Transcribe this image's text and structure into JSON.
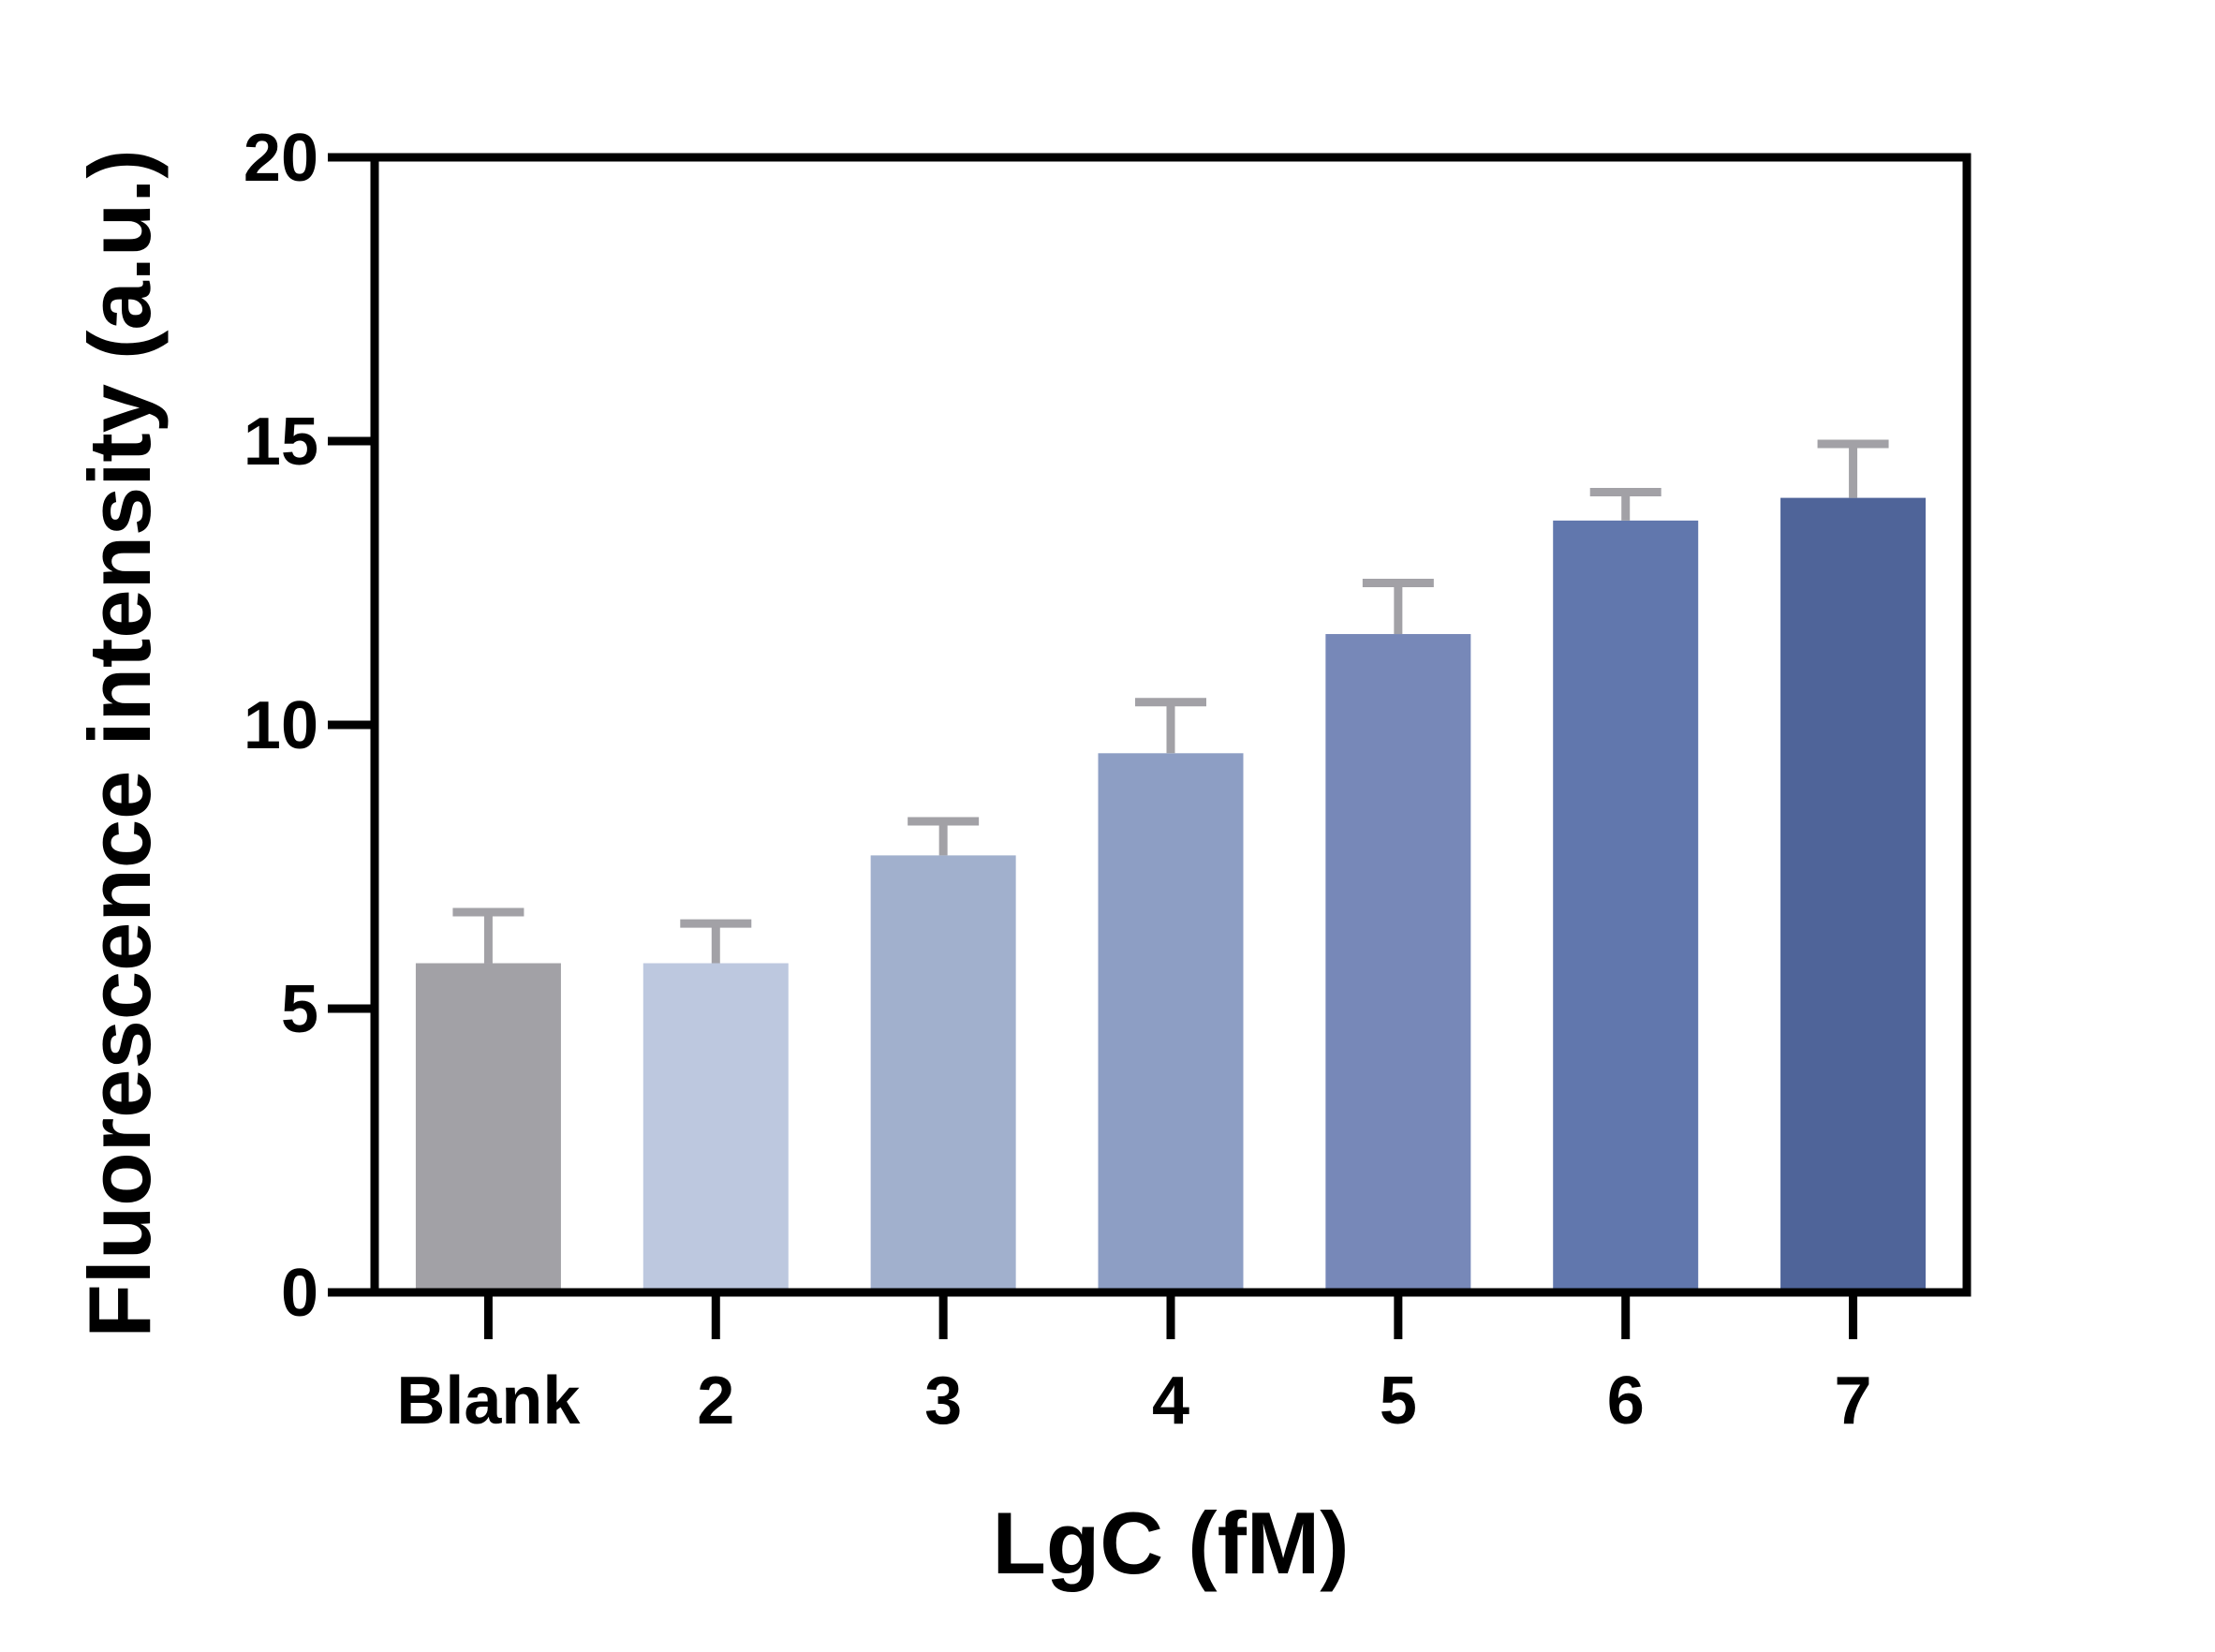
{
  "chart_data": {
    "type": "bar",
    "title": "",
    "xlabel": "LgC (fM)",
    "ylabel": "Fluorescence intensity (a.u.)",
    "categories": [
      "Blank",
      "2",
      "3",
      "4",
      "5",
      "6",
      "7"
    ],
    "values": [
      5.8,
      5.8,
      7.7,
      9.5,
      11.6,
      13.6,
      14.0
    ],
    "error_upper": [
      0.9,
      0.7,
      0.6,
      0.9,
      0.9,
      0.5,
      0.95
    ],
    "ylim": [
      0,
      20
    ],
    "yticks": [
      0,
      5,
      10,
      15,
      20
    ],
    "bar_colors": [
      "#a2a1a6",
      "#bdc8df",
      "#a1b0cd",
      "#8d9ec4",
      "#7788b8",
      "#6177ad",
      "#4f6499"
    ],
    "error_bar_color": "#a2a1a6",
    "grid": false,
    "legend": "none"
  }
}
